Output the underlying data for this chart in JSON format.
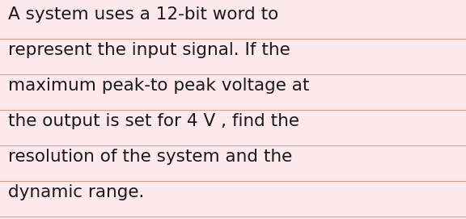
{
  "text_lines": [
    "A system uses a 12-bit word to",
    "represent the input signal. If the",
    "maximum peak-to peak voltage at",
    "the output is set for 4 V , find the",
    "resolution of the system and the",
    "dynamic range."
  ],
  "background_color": "#fce8ed",
  "text_color": "#1a1a1a",
  "line_color": "#d4a090",
  "font_size": 15.5,
  "fig_width": 5.76,
  "fig_height": 2.71,
  "dpi": 100
}
